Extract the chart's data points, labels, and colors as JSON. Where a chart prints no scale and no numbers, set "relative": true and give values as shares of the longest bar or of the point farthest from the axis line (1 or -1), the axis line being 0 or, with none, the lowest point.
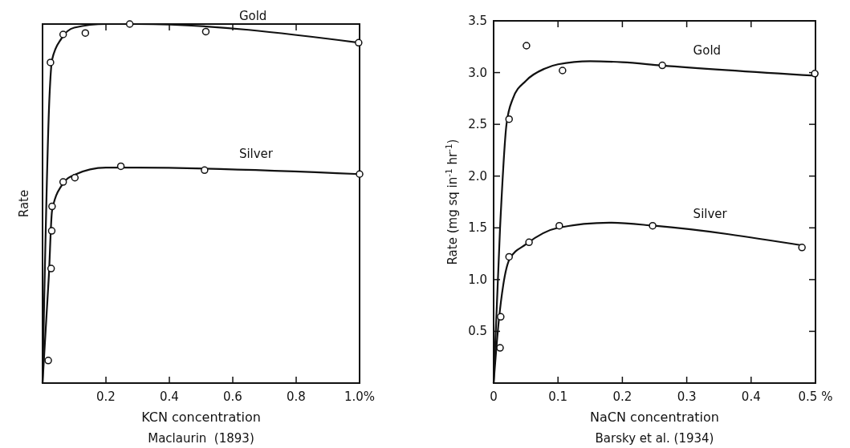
{
  "chart_data": [
    {
      "type": "line",
      "relative": true,
      "ylabel": "Rate",
      "xlabel": "KCN concentration",
      "annotations": [
        "Maclaurin  (1893)"
      ],
      "xlim": [
        0,
        1.0
      ],
      "xticks": [
        0.2,
        0.4,
        0.6,
        0.8,
        {
          "value": 1.0,
          "label": "1.0%"
        }
      ],
      "grid": false,
      "series": [
        {
          "name": "Gold",
          "color": "#111111",
          "marker": "none",
          "x": [
            0,
            0.022,
            0.03,
            0.06,
            0.1,
            0.2,
            0.3,
            1.0
          ],
          "values": [
            0,
            0.8,
            0.9,
            0.96,
            0.99,
            1.0,
            1.0,
            0.948
          ]
        },
        {
          "name": "Silver",
          "color": "#111111",
          "marker": "none",
          "x": [
            0,
            0.02,
            0.03,
            0.06,
            0.1,
            0.2,
            0.3,
            1.0
          ],
          "values": [
            0,
            0.3,
            0.48,
            0.55,
            0.58,
            0.6,
            0.6,
            0.582
          ]
        },
        {
          "type": "scatter",
          "color": "#111111",
          "marker": "circle",
          "x": [
            0.018,
            0.025,
            0.065,
            0.135,
            0.275,
            0.515,
            0.997
          ],
          "values": [
            0.063,
            0.893,
            0.971,
            0.975,
            1.0,
            0.979,
            0.948
          ]
        },
        {
          "type": "scatter",
          "color": "#111111",
          "marker": "circle",
          "x": [
            0.027,
            0.029,
            0.03,
            0.065,
            0.102,
            0.247,
            0.511,
            1.0
          ],
          "values": [
            0.319,
            0.424,
            0.492,
            0.56,
            0.572,
            0.604,
            0.593,
            0.582
          ]
        }
      ]
    },
    {
      "type": "line",
      "ylabel": "Rate (mg sq in$^{-1}$ hr$^{-1}$)",
      "xlabel": "NaCN concentration",
      "annotations": [
        "Barsky et al. (1934)"
      ],
      "xlim": [
        0,
        0.5
      ],
      "ylim": [
        0,
        3.5
      ],
      "xticks": [
        0,
        0.1,
        0.2,
        0.3,
        0.4,
        {
          "value": 0.5,
          "label": "0.5 %"
        }
      ],
      "yticks": [
        0.5,
        {
          "value": 1.0,
          "label": "1.0"
        },
        1.5,
        {
          "value": 2.0,
          "label": "2.0"
        },
        2.5,
        {
          "value": 3.0,
          "label": "3.0"
        },
        3.5
      ],
      "grid": false,
      "series": [
        {
          "name": "Gold",
          "color": "#111111",
          "marker": "none",
          "x": [
            0,
            0.01,
            0.02,
            0.03,
            0.05,
            0.08,
            0.1,
            0.15,
            0.2,
            0.26,
            0.5
          ],
          "values": [
            0,
            1.5,
            2.5,
            2.75,
            2.92,
            3.04,
            3.08,
            3.11,
            3.1,
            3.07,
            2.97
          ]
        },
        {
          "name": "Silver",
          "color": "#111111",
          "marker": "none",
          "x": [
            0,
            0.008,
            0.015,
            0.025,
            0.05,
            0.1,
            0.18,
            0.25,
            0.48
          ],
          "values": [
            0,
            0.6,
            0.95,
            1.2,
            1.34,
            1.5,
            1.55,
            1.52,
            1.33
          ]
        },
        {
          "type": "scatter",
          "color": "#111111",
          "marker": "circle",
          "x": [
            0.024,
            0.051,
            0.107,
            0.262,
            0.499
          ],
          "values": [
            2.55,
            3.26,
            3.02,
            3.07,
            2.99
          ]
        },
        {
          "type": "scatter",
          "color": "#111111",
          "marker": "circle",
          "x": [
            0.01,
            0.011,
            0.024,
            0.055,
            0.102,
            0.247,
            0.479
          ],
          "values": [
            0.34,
            0.64,
            1.22,
            1.36,
            1.52,
            1.52,
            1.31
          ]
        }
      ]
    }
  ]
}
